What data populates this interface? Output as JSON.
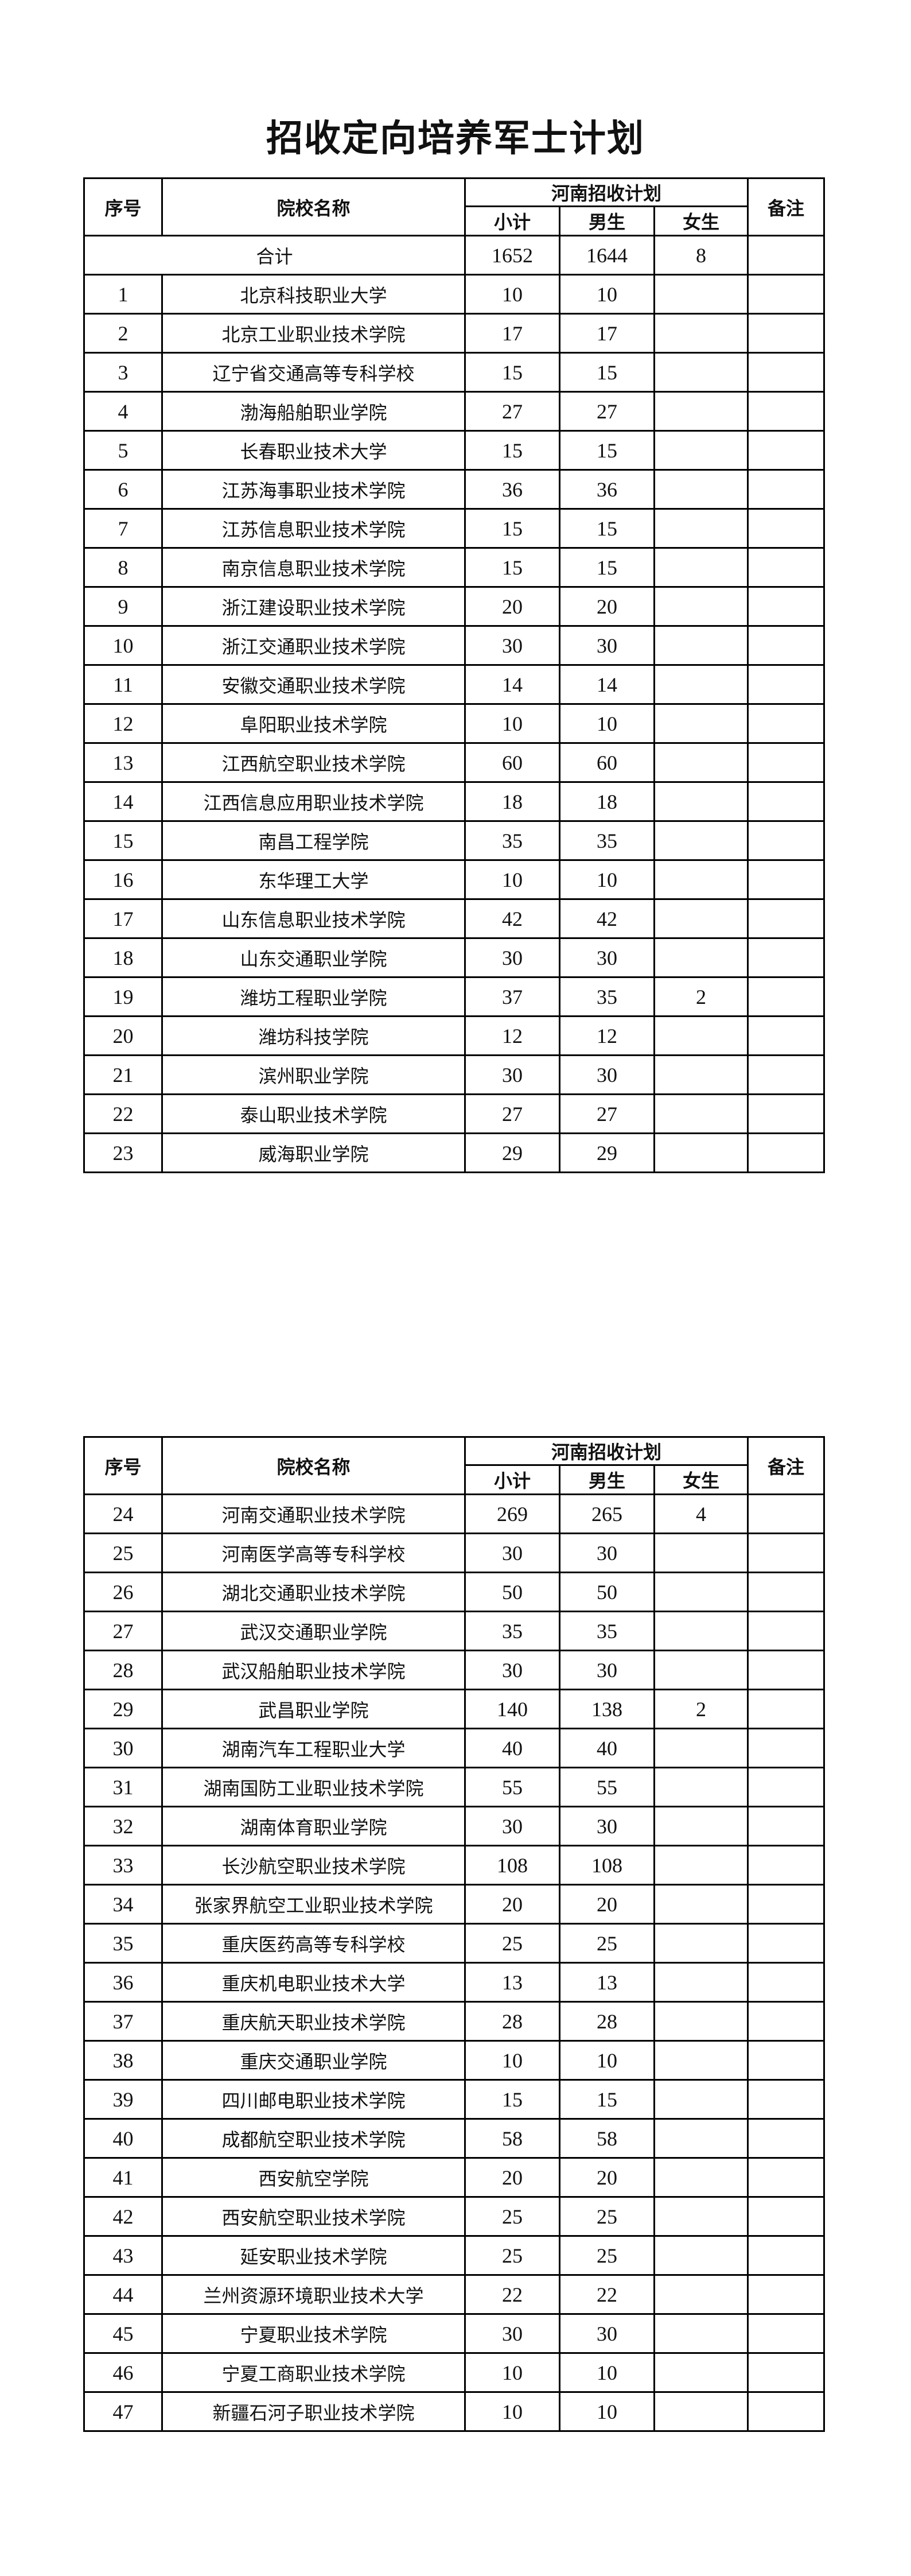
{
  "title": "招收定向培养军士计划",
  "header": {
    "no": "序号",
    "school": "院校名称",
    "plan_group": "河南招收计划",
    "subtotal": "小计",
    "male": "男生",
    "female": "女生",
    "note": "备注"
  },
  "total": {
    "label": "合计",
    "subtotal": "1652",
    "male": "1644",
    "female": "8",
    "note": ""
  },
  "tables": [
    {
      "rows": [
        {
          "no": "1",
          "name": "北京科技职业大学",
          "subtotal": "10",
          "male": "10",
          "female": "",
          "note": ""
        },
        {
          "no": "2",
          "name": "北京工业职业技术学院",
          "subtotal": "17",
          "male": "17",
          "female": "",
          "note": ""
        },
        {
          "no": "3",
          "name": "辽宁省交通高等专科学校",
          "subtotal": "15",
          "male": "15",
          "female": "",
          "note": ""
        },
        {
          "no": "4",
          "name": "渤海船舶职业学院",
          "subtotal": "27",
          "male": "27",
          "female": "",
          "note": ""
        },
        {
          "no": "5",
          "name": "长春职业技术大学",
          "subtotal": "15",
          "male": "15",
          "female": "",
          "note": ""
        },
        {
          "no": "6",
          "name": "江苏海事职业技术学院",
          "subtotal": "36",
          "male": "36",
          "female": "",
          "note": ""
        },
        {
          "no": "7",
          "name": "江苏信息职业技术学院",
          "subtotal": "15",
          "male": "15",
          "female": "",
          "note": ""
        },
        {
          "no": "8",
          "name": "南京信息职业技术学院",
          "subtotal": "15",
          "male": "15",
          "female": "",
          "note": ""
        },
        {
          "no": "9",
          "name": "浙江建设职业技术学院",
          "subtotal": "20",
          "male": "20",
          "female": "",
          "note": ""
        },
        {
          "no": "10",
          "name": "浙江交通职业技术学院",
          "subtotal": "30",
          "male": "30",
          "female": "",
          "note": ""
        },
        {
          "no": "11",
          "name": "安徽交通职业技术学院",
          "subtotal": "14",
          "male": "14",
          "female": "",
          "note": ""
        },
        {
          "no": "12",
          "name": "阜阳职业技术学院",
          "subtotal": "10",
          "male": "10",
          "female": "",
          "note": ""
        },
        {
          "no": "13",
          "name": "江西航空职业技术学院",
          "subtotal": "60",
          "male": "60",
          "female": "",
          "note": ""
        },
        {
          "no": "14",
          "name": "江西信息应用职业技术学院",
          "subtotal": "18",
          "male": "18",
          "female": "",
          "note": ""
        },
        {
          "no": "15",
          "name": "南昌工程学院",
          "subtotal": "35",
          "male": "35",
          "female": "",
          "note": ""
        },
        {
          "no": "16",
          "name": "东华理工大学",
          "subtotal": "10",
          "male": "10",
          "female": "",
          "note": ""
        },
        {
          "no": "17",
          "name": "山东信息职业技术学院",
          "subtotal": "42",
          "male": "42",
          "female": "",
          "note": ""
        },
        {
          "no": "18",
          "name": "山东交通职业学院",
          "subtotal": "30",
          "male": "30",
          "female": "",
          "note": ""
        },
        {
          "no": "19",
          "name": "潍坊工程职业学院",
          "subtotal": "37",
          "male": "35",
          "female": "2",
          "note": ""
        },
        {
          "no": "20",
          "name": "潍坊科技学院",
          "subtotal": "12",
          "male": "12",
          "female": "",
          "note": ""
        },
        {
          "no": "21",
          "name": "滨州职业学院",
          "subtotal": "30",
          "male": "30",
          "female": "",
          "note": ""
        },
        {
          "no": "22",
          "name": "泰山职业技术学院",
          "subtotal": "27",
          "male": "27",
          "female": "",
          "note": ""
        },
        {
          "no": "23",
          "name": "威海职业学院",
          "subtotal": "29",
          "male": "29",
          "female": "",
          "note": ""
        }
      ]
    },
    {
      "rows": [
        {
          "no": "24",
          "name": "河南交通职业技术学院",
          "subtotal": "269",
          "male": "265",
          "female": "4",
          "note": ""
        },
        {
          "no": "25",
          "name": "河南医学高等专科学校",
          "subtotal": "30",
          "male": "30",
          "female": "",
          "note": ""
        },
        {
          "no": "26",
          "name": "湖北交通职业技术学院",
          "subtotal": "50",
          "male": "50",
          "female": "",
          "note": ""
        },
        {
          "no": "27",
          "name": "武汉交通职业学院",
          "subtotal": "35",
          "male": "35",
          "female": "",
          "note": ""
        },
        {
          "no": "28",
          "name": "武汉船舶职业技术学院",
          "subtotal": "30",
          "male": "30",
          "female": "",
          "note": ""
        },
        {
          "no": "29",
          "name": "武昌职业学院",
          "subtotal": "140",
          "male": "138",
          "female": "2",
          "note": ""
        },
        {
          "no": "30",
          "name": "湖南汽车工程职业大学",
          "subtotal": "40",
          "male": "40",
          "female": "",
          "note": ""
        },
        {
          "no": "31",
          "name": "湖南国防工业职业技术学院",
          "subtotal": "55",
          "male": "55",
          "female": "",
          "note": ""
        },
        {
          "no": "32",
          "name": "湖南体育职业学院",
          "subtotal": "30",
          "male": "30",
          "female": "",
          "note": ""
        },
        {
          "no": "33",
          "name": "长沙航空职业技术学院",
          "subtotal": "108",
          "male": "108",
          "female": "",
          "note": ""
        },
        {
          "no": "34",
          "name": "张家界航空工业职业技术学院",
          "subtotal": "20",
          "male": "20",
          "female": "",
          "note": ""
        },
        {
          "no": "35",
          "name": "重庆医药高等专科学校",
          "subtotal": "25",
          "male": "25",
          "female": "",
          "note": ""
        },
        {
          "no": "36",
          "name": "重庆机电职业技术大学",
          "subtotal": "13",
          "male": "13",
          "female": "",
          "note": ""
        },
        {
          "no": "37",
          "name": "重庆航天职业技术学院",
          "subtotal": "28",
          "male": "28",
          "female": "",
          "note": ""
        },
        {
          "no": "38",
          "name": "重庆交通职业学院",
          "subtotal": "10",
          "male": "10",
          "female": "",
          "note": ""
        },
        {
          "no": "39",
          "name": "四川邮电职业技术学院",
          "subtotal": "15",
          "male": "15",
          "female": "",
          "note": ""
        },
        {
          "no": "40",
          "name": "成都航空职业技术学院",
          "subtotal": "58",
          "male": "58",
          "female": "",
          "note": ""
        },
        {
          "no": "41",
          "name": "西安航空学院",
          "subtotal": "20",
          "male": "20",
          "female": "",
          "note": ""
        },
        {
          "no": "42",
          "name": "西安航空职业技术学院",
          "subtotal": "25",
          "male": "25",
          "female": "",
          "note": ""
        },
        {
          "no": "43",
          "name": "延安职业技术学院",
          "subtotal": "25",
          "male": "25",
          "female": "",
          "note": ""
        },
        {
          "no": "44",
          "name": "兰州资源环境职业技术大学",
          "subtotal": "22",
          "male": "22",
          "female": "",
          "note": ""
        },
        {
          "no": "45",
          "name": "宁夏职业技术学院",
          "subtotal": "30",
          "male": "30",
          "female": "",
          "note": ""
        },
        {
          "no": "46",
          "name": "宁夏工商职业技术学院",
          "subtotal": "10",
          "male": "10",
          "female": "",
          "note": ""
        },
        {
          "no": "47",
          "name": "新疆石河子职业技术学院",
          "subtotal": "10",
          "male": "10",
          "female": "",
          "note": ""
        }
      ]
    }
  ]
}
